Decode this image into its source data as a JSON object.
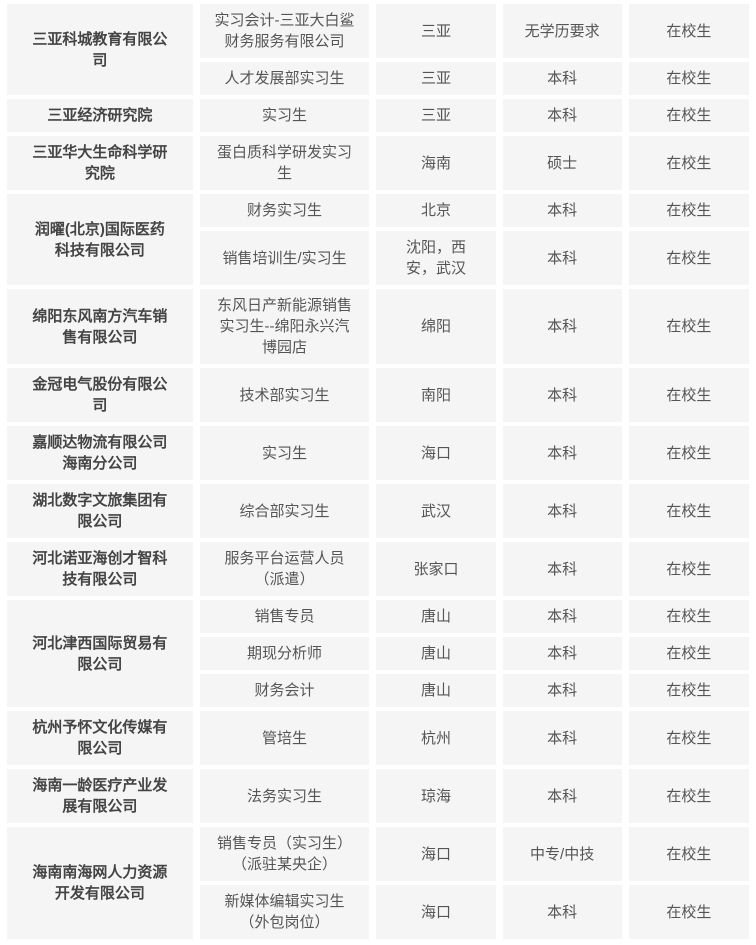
{
  "colors": {
    "cell_background": "#f5f5f5",
    "gap_background": "#ffffff",
    "text": "#555555",
    "company_text": "#444444"
  },
  "table": {
    "groups": [
      {
        "company": "三亚科城教育有限公司",
        "rows": [
          {
            "position": "实习会计-三亚大白鲨财务服务有限公司",
            "city": "三亚",
            "education": "无学历要求",
            "status": "在校生"
          },
          {
            "position": "人才发展部实习生",
            "city": "三亚",
            "education": "本科",
            "status": "在校生"
          }
        ]
      },
      {
        "company": "三亚经济研究院",
        "rows": [
          {
            "position": "实习生",
            "city": "三亚",
            "education": "本科",
            "status": "在校生"
          }
        ]
      },
      {
        "company": "三亚华大生命科学研究院",
        "rows": [
          {
            "position": "蛋白质科学研发实习生",
            "city": "海南",
            "education": "硕士",
            "status": "在校生"
          }
        ]
      },
      {
        "company": "润曜(北京)国际医药科技有限公司",
        "rows": [
          {
            "position": "财务实习生",
            "city": "北京",
            "education": "本科",
            "status": "在校生"
          },
          {
            "position": "销售培训生/实习生",
            "city": "沈阳，西安，武汉",
            "education": "本科",
            "status": "在校生"
          }
        ]
      },
      {
        "company": "绵阳东风南方汽车销售有限公司",
        "rows": [
          {
            "position": "东风日产新能源销售实习生--绵阳永兴汽博园店",
            "city": "绵阳",
            "education": "本科",
            "status": "在校生"
          }
        ]
      },
      {
        "company": "金冠电气股份有限公司",
        "rows": [
          {
            "position": "技术部实习生",
            "city": "南阳",
            "education": "本科",
            "status": "在校生"
          }
        ]
      },
      {
        "company": "嘉顺达物流有限公司海南分公司",
        "rows": [
          {
            "position": "实习生",
            "city": "海口",
            "education": "本科",
            "status": "在校生"
          }
        ]
      },
      {
        "company": "湖北数字文旅集团有限公司",
        "rows": [
          {
            "position": "综合部实习生",
            "city": "武汉",
            "education": "本科",
            "status": "在校生"
          }
        ]
      },
      {
        "company": "河北诺亚海创才智科技有限公司",
        "rows": [
          {
            "position": "服务平台运营人员（派遣）",
            "city": "张家口",
            "education": "本科",
            "status": "在校生"
          }
        ]
      },
      {
        "company": "河北津西国际贸易有限公司",
        "rows": [
          {
            "position": "销售专员",
            "city": "唐山",
            "education": "本科",
            "status": "在校生"
          },
          {
            "position": "期现分析师",
            "city": "唐山",
            "education": "本科",
            "status": "在校生"
          },
          {
            "position": "财务会计",
            "city": "唐山",
            "education": "本科",
            "status": "在校生"
          }
        ]
      },
      {
        "company": "杭州予怀文化传媒有限公司",
        "rows": [
          {
            "position": "管培生",
            "city": "杭州",
            "education": "本科",
            "status": "在校生"
          }
        ]
      },
      {
        "company": "海南一龄医疗产业发展有限公司",
        "rows": [
          {
            "position": "法务实习生",
            "city": "琼海",
            "education": "本科",
            "status": "在校生"
          }
        ]
      },
      {
        "company": "海南南海网人力资源开发有限公司",
        "rows": [
          {
            "position": "销售专员（实习生）（派驻某央企）",
            "city": "海口",
            "education": "中专/中技",
            "status": "在校生"
          },
          {
            "position": "新媒体编辑实习生（外包岗位）",
            "city": "海口",
            "education": "本科",
            "status": "在校生"
          }
        ]
      }
    ]
  }
}
